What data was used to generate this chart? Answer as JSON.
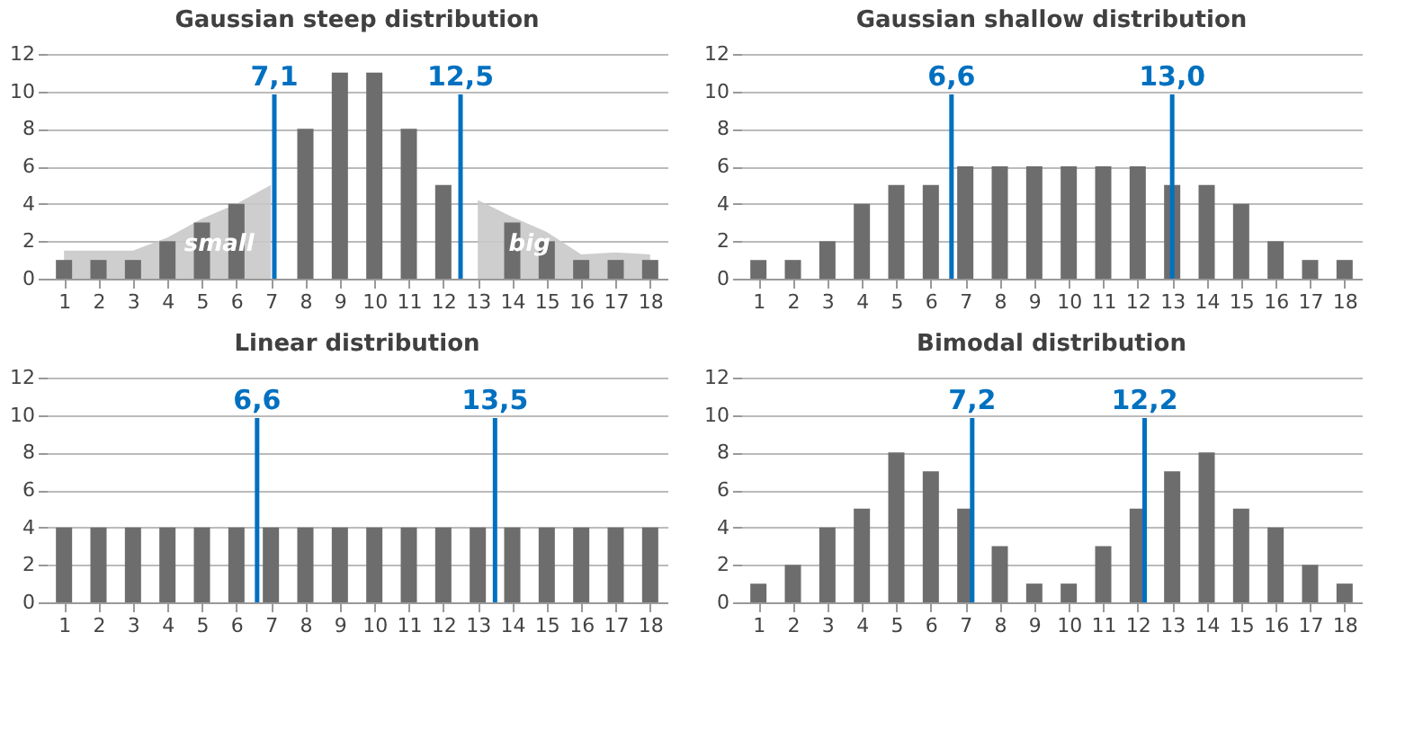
{
  "chart_data": [
    {
      "type": "bar",
      "title": "Gaussian steep distribution",
      "x": [
        1,
        2,
        3,
        4,
        5,
        6,
        7,
        8,
        9,
        10,
        11,
        12,
        13,
        14,
        15,
        16,
        17,
        18
      ],
      "xlim": [
        0.5,
        18.5
      ],
      "xticks": [
        1,
        2,
        3,
        4,
        5,
        6,
        7,
        8,
        9,
        10,
        11,
        12,
        13,
        14,
        15,
        16,
        17,
        18
      ],
      "ylim": [
        0,
        12
      ],
      "yticks": [
        0,
        2,
        4,
        6,
        8,
        10,
        12
      ],
      "grid": "y",
      "series": [
        {
          "type": "area",
          "color": "#c9c9c9",
          "x": [
            1,
            2,
            3,
            4,
            5,
            6,
            7
          ],
          "values": [
            1.5,
            1.5,
            1.5,
            2.2,
            3.2,
            4,
            5
          ]
        },
        {
          "type": "area",
          "color": "#c9c9c9",
          "x": [
            13,
            14,
            15,
            16,
            17,
            18
          ],
          "values": [
            4.2,
            3.3,
            2.5,
            1.3,
            1.4,
            1.3
          ]
        },
        {
          "color": "#6d6d6d",
          "values": [
            1,
            1,
            1,
            2,
            3,
            4,
            0,
            8,
            11,
            11,
            8,
            5,
            0,
            3,
            2,
            1,
            1,
            1
          ]
        }
      ],
      "ref_lines": [
        {
          "axis": "x",
          "value": 7.1,
          "label": "7,1",
          "color": "#0070c0"
        },
        {
          "axis": "x",
          "value": 12.5,
          "label": "12,5",
          "color": "#0070c0"
        }
      ],
      "annotations": [
        {
          "text": "small",
          "x": 5.5,
          "y": 1.2
        },
        {
          "text": "big",
          "x": 14.5,
          "y": 1.2
        }
      ]
    },
    {
      "type": "bar",
      "title": "Gaussian shallow distribution",
      "x": [
        1,
        2,
        3,
        4,
        5,
        6,
        7,
        8,
        9,
        10,
        11,
        12,
        13,
        14,
        15,
        16,
        17,
        18
      ],
      "xlim": [
        0.5,
        18.5
      ],
      "xticks": [
        1,
        2,
        3,
        4,
        5,
        6,
        7,
        8,
        9,
        10,
        11,
        12,
        13,
        14,
        15,
        16,
        17,
        18
      ],
      "ylim": [
        0,
        12
      ],
      "yticks": [
        0,
        2,
        4,
        6,
        8,
        10,
        12
      ],
      "grid": "y",
      "series": [
        {
          "color": "#6d6d6d",
          "values": [
            1,
            1,
            2,
            4,
            5,
            5,
            6,
            6,
            6,
            6,
            6,
            6,
            5,
            5,
            4,
            2,
            1,
            1
          ]
        }
      ],
      "ref_lines": [
        {
          "axis": "x",
          "value": 6.6,
          "label": "6,6",
          "color": "#0070c0"
        },
        {
          "axis": "x",
          "value": 13.0,
          "label": "13,0",
          "color": "#0070c0"
        }
      ]
    },
    {
      "type": "bar",
      "title": "Linear distribution",
      "x": [
        1,
        2,
        3,
        4,
        5,
        6,
        7,
        8,
        9,
        10,
        11,
        12,
        13,
        14,
        15,
        16,
        17,
        18
      ],
      "xlim": [
        0.5,
        18.5
      ],
      "xticks": [
        1,
        2,
        3,
        4,
        5,
        6,
        7,
        8,
        9,
        10,
        11,
        12,
        13,
        14,
        15,
        16,
        17,
        18
      ],
      "ylim": [
        0,
        12
      ],
      "yticks": [
        0,
        2,
        4,
        6,
        8,
        10,
        12
      ],
      "grid": "y",
      "series": [
        {
          "color": "#6d6d6d",
          "values": [
            4,
            4,
            4,
            4,
            4,
            4,
            4,
            4,
            4,
            4,
            4,
            4,
            4,
            4,
            4,
            4,
            4,
            4
          ]
        }
      ],
      "ref_lines": [
        {
          "axis": "x",
          "value": 6.6,
          "label": "6,6",
          "color": "#0070c0"
        },
        {
          "axis": "x",
          "value": 13.5,
          "label": "13,5",
          "color": "#0070c0"
        }
      ]
    },
    {
      "type": "bar",
      "title": "Bimodal distribution",
      "x": [
        1,
        2,
        3,
        4,
        5,
        6,
        7,
        8,
        9,
        10,
        11,
        12,
        13,
        14,
        15,
        16,
        17,
        18
      ],
      "xlim": [
        0.5,
        18.5
      ],
      "xticks": [
        1,
        2,
        3,
        4,
        5,
        6,
        7,
        8,
        9,
        10,
        11,
        12,
        13,
        14,
        15,
        16,
        17,
        18
      ],
      "ylim": [
        0,
        12
      ],
      "yticks": [
        0,
        2,
        4,
        6,
        8,
        10,
        12
      ],
      "grid": "y",
      "series": [
        {
          "color": "#6d6d6d",
          "values": [
            1,
            2,
            4,
            5,
            8,
            7,
            5,
            3,
            1,
            1,
            3,
            5,
            7,
            8,
            5,
            4,
            2,
            1
          ]
        }
      ],
      "ref_lines": [
        {
          "axis": "x",
          "value": 7.2,
          "label": "7,2",
          "color": "#0070c0"
        },
        {
          "axis": "x",
          "value": 12.2,
          "label": "12,2",
          "color": "#0070c0"
        }
      ]
    }
  ]
}
